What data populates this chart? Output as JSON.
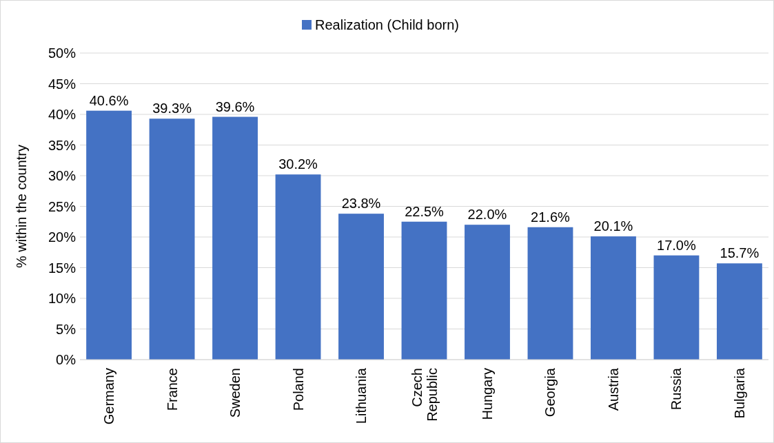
{
  "chart_data": {
    "type": "bar",
    "ylabel": "% within the country",
    "categories": [
      "Germany",
      "France",
      "Sweden",
      "Poland",
      "Lithuania",
      "Czech Republic",
      "Hungary",
      "Georgia",
      "Austria",
      "Russia",
      "Bulgaria"
    ],
    "series": [
      {
        "name": "Realization (Child born)",
        "color": "#4472c4",
        "values": [
          40.6,
          39.3,
          39.6,
          30.2,
          23.8,
          22.5,
          22.0,
          21.6,
          20.1,
          17.0,
          15.7
        ],
        "value_labels": [
          "40.6%",
          "39.3%",
          "39.6%",
          "30.2%",
          "23.8%",
          "22.5%",
          "22.0%",
          "21.6%",
          "20.1%",
          "17.0%",
          "15.7%"
        ]
      }
    ],
    "ylim": [
      0,
      50
    ],
    "yticks": [
      {
        "value": 0,
        "label": "0%"
      },
      {
        "value": 5,
        "label": "5%"
      },
      {
        "value": 10,
        "label": "10%"
      },
      {
        "value": 15,
        "label": "15%"
      },
      {
        "value": 20,
        "label": "20%"
      },
      {
        "value": 25,
        "label": "25%"
      },
      {
        "value": 30,
        "label": "30%"
      },
      {
        "value": 35,
        "label": "35%"
      },
      {
        "value": 40,
        "label": "40%"
      },
      {
        "value": 45,
        "label": "45%"
      },
      {
        "value": 50,
        "label": "50%"
      }
    ],
    "grid": "y",
    "legend": "top"
  }
}
